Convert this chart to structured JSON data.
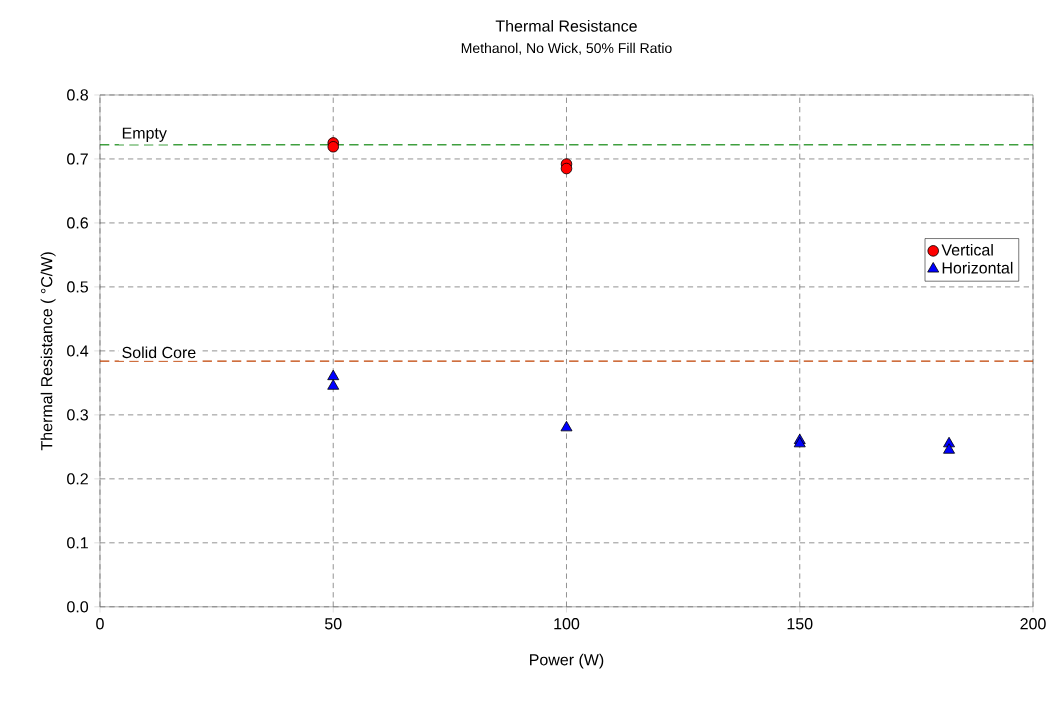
{
  "chart_data": {
    "type": "scatter",
    "title": "Thermal Resistance",
    "subtitle": "Methanol, No Wick, 50% Fill Ratio",
    "xlabel": "Power (W)",
    "ylabel": "Thermal Resistance ( °C/W)",
    "series": [
      {
        "name": "Vertical",
        "color": "#ff0000",
        "marker": "circle",
        "x": [
          50,
          50,
          100,
          100
        ],
        "values": [
          0.725,
          0.719,
          0.692,
          0.685
        ]
      },
      {
        "name": "Horizontal",
        "color": "#0000ff",
        "marker": "triangle",
        "x": [
          50,
          50,
          100,
          150,
          150,
          182,
          182
        ],
        "values": [
          0.36,
          0.345,
          0.28,
          0.26,
          0.255,
          0.255,
          0.245
        ]
      }
    ],
    "xlim": [
      0,
      200
    ],
    "ylim": [
      0,
      0.8
    ],
    "xticks": [
      0,
      50,
      100,
      150,
      200
    ],
    "yticks": [
      {
        "value": 0,
        "label": "0.0"
      },
      0.1,
      0.2,
      0.3,
      0.4,
      0.5,
      0.6,
      0.7,
      0.8
    ],
    "ref_lines": [
      {
        "axis": "y",
        "value": 0.722,
        "label": "Empty",
        "color": "#008000",
        "line_style": "dashed"
      },
      {
        "axis": "y",
        "value": 0.384,
        "label": "Solid Core",
        "color": "#c04000",
        "line_style": "dashed"
      }
    ],
    "grid": true,
    "legend": "right"
  }
}
